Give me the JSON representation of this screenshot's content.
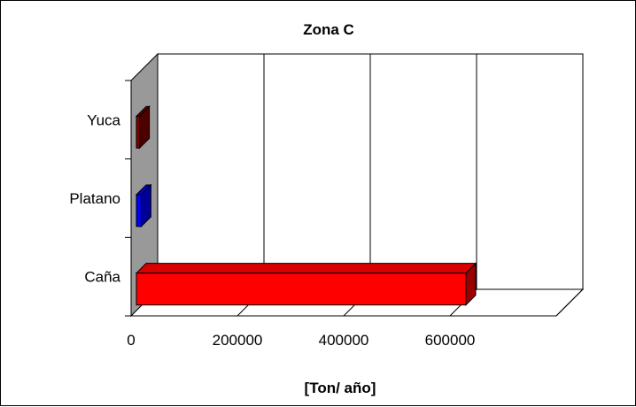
{
  "chart_data": {
    "type": "bar",
    "orientation": "horizontal",
    "style": "3d",
    "title": "Zona C",
    "xlabel": "[Ton/ año]",
    "ylabel": "",
    "categories": [
      "Yuca",
      "Platano",
      "Caña"
    ],
    "values": [
      6000,
      9000,
      620000
    ],
    "colors": [
      "#800000",
      "#0000ff",
      "#ff0000"
    ],
    "xlim": [
      0,
      800000
    ],
    "xticks": [
      "0",
      "200000",
      "400000",
      "600000"
    ],
    "grid": "vertical",
    "legend": "none"
  }
}
